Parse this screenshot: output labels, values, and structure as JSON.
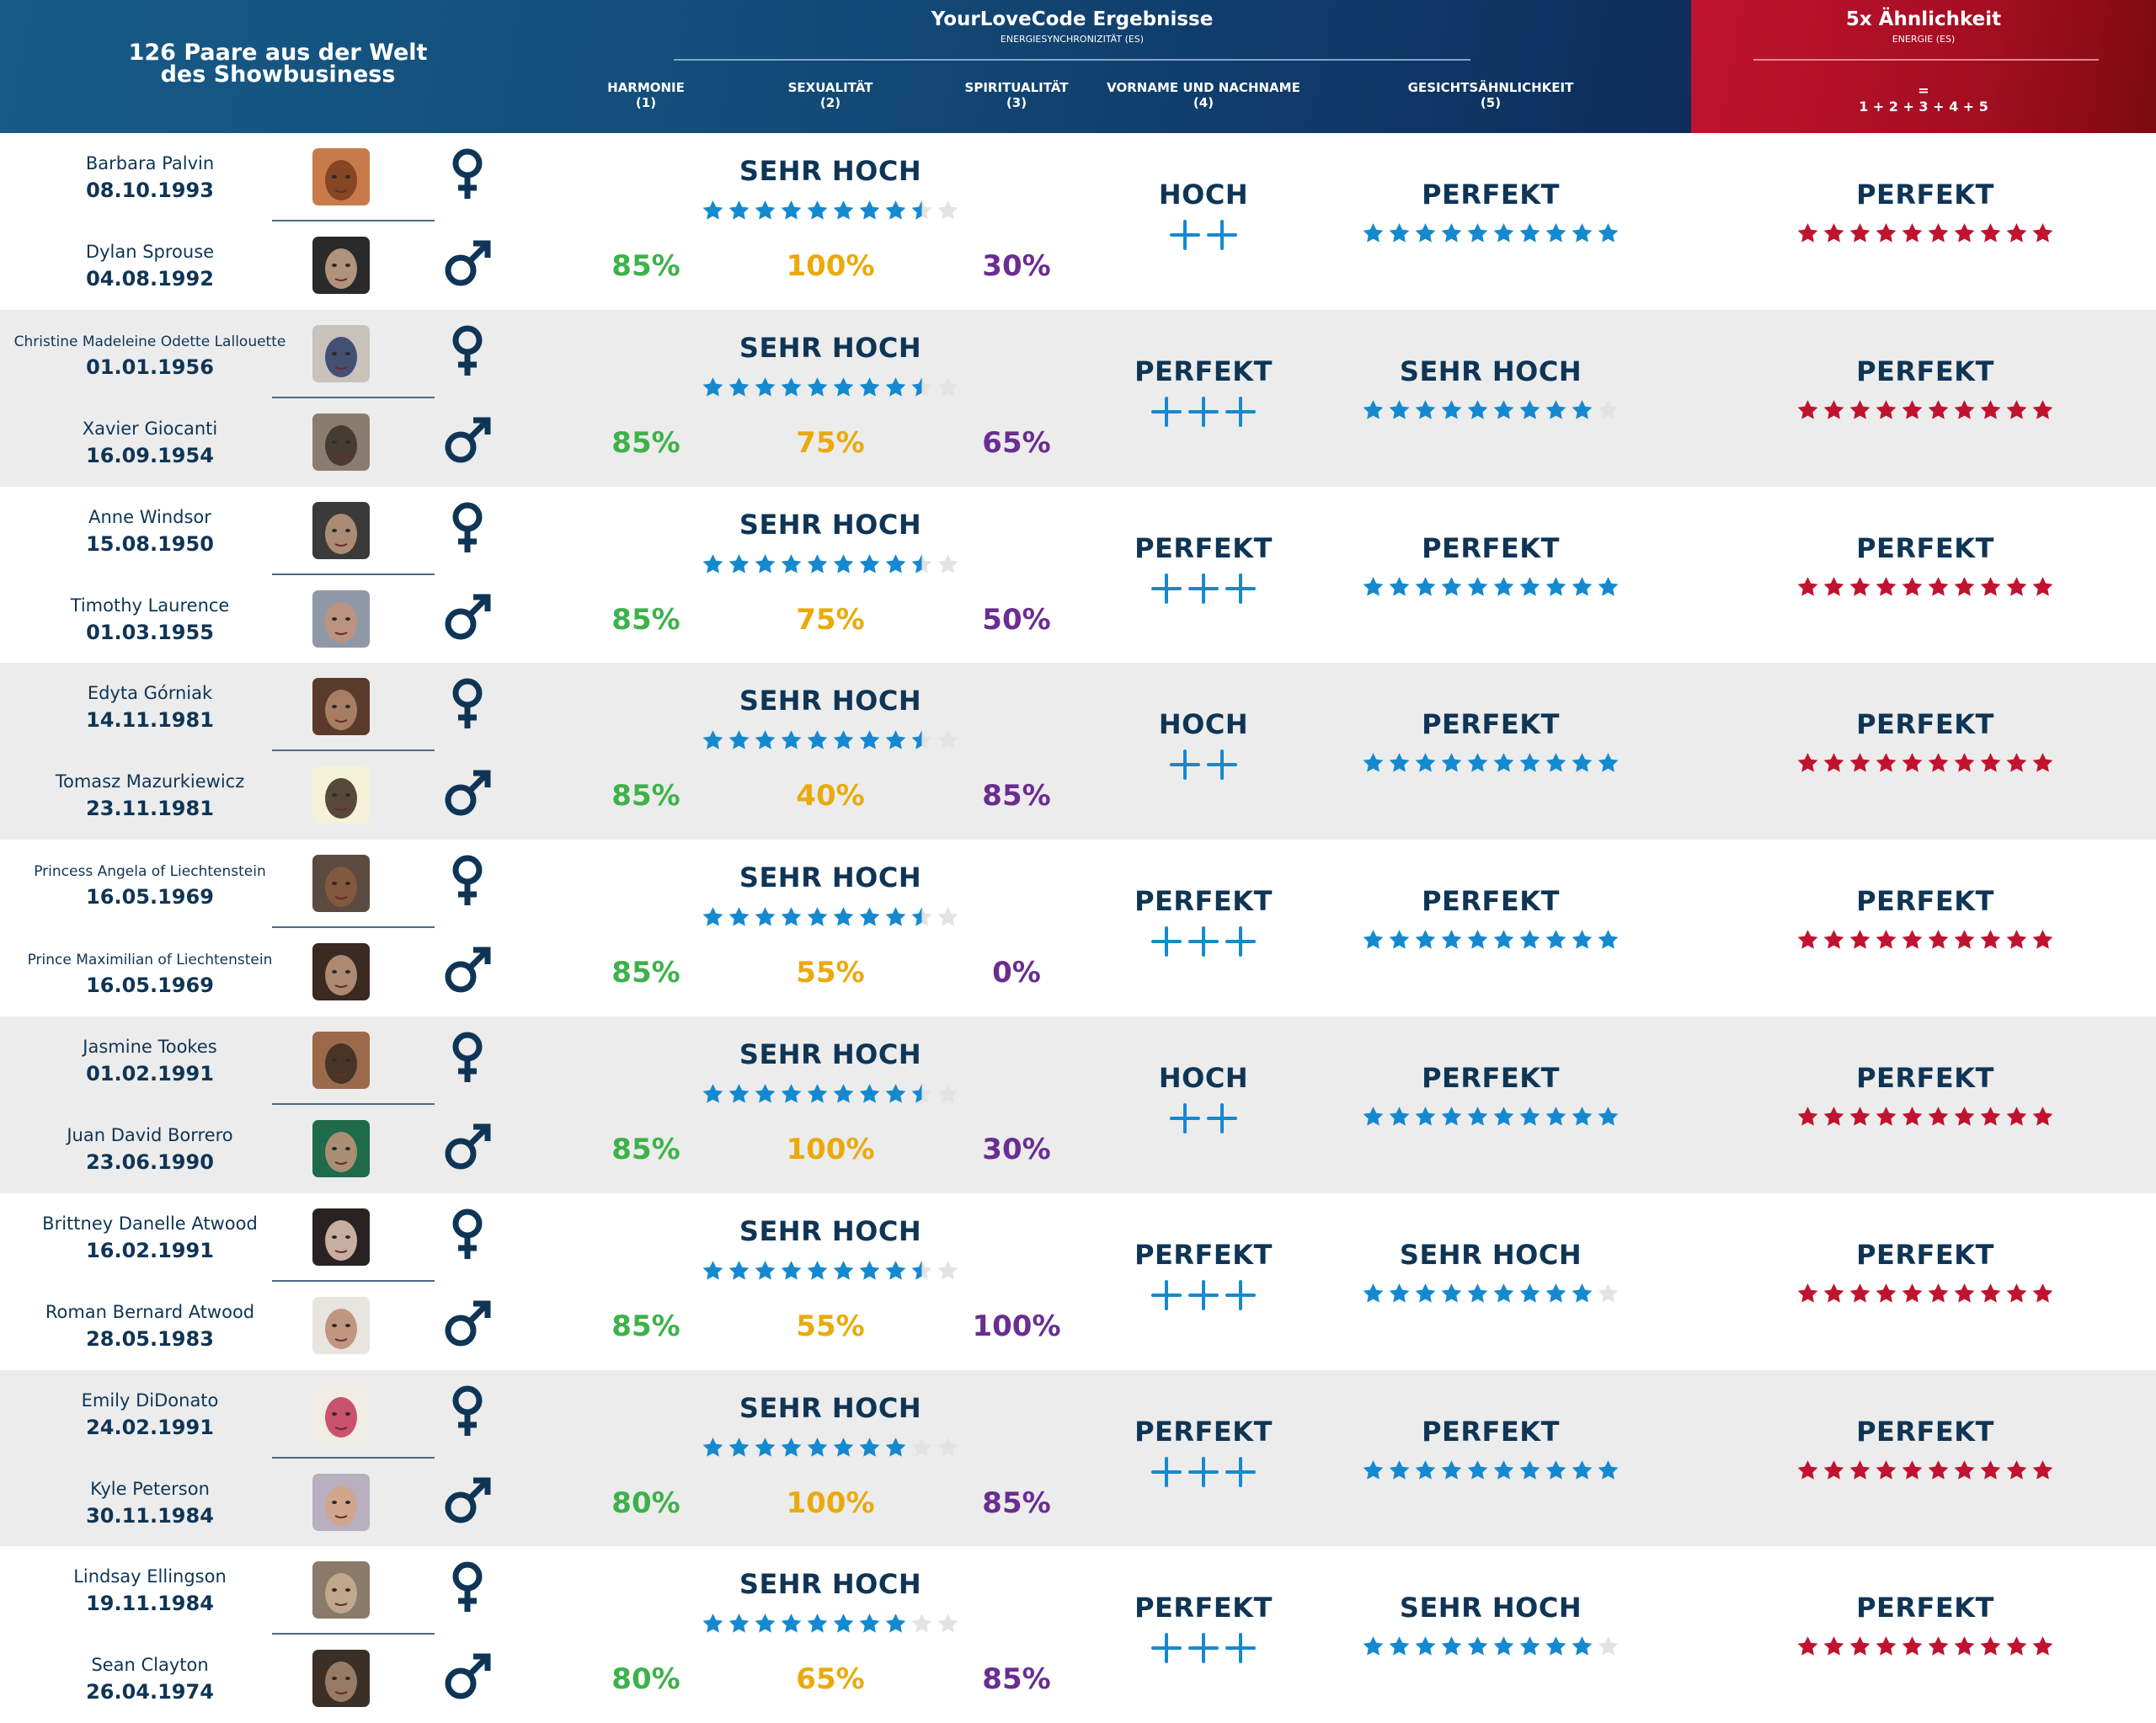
{
  "header": {
    "left_title_line1": "126 Paare aus der Welt",
    "left_title_line2": "des Showbusiness",
    "main_title": "YourLoveCode Ergebnisse",
    "main_subtitle": "ENERGIESYNCHRONIZITÄT (ES)",
    "columns": [
      {
        "label": "HARMONIE",
        "num": "(1)"
      },
      {
        "label": "SEXUALITÄT",
        "num": "(2)"
      },
      {
        "label": "SPIRITUALITÄT",
        "num": "(3)"
      },
      {
        "label": "VORNAME UND NACHNAME",
        "num": "(4)"
      },
      {
        "label": "GESICHTSÄHNLICHKEIT",
        "num": "(5)"
      }
    ],
    "total_title": "5x Ähnlichkeit",
    "total_subtitle": "ENERGIE (ES)",
    "total_formula_eq": "=",
    "total_formula": "1 + 2 + 3 + 4 + 5"
  },
  "colors": {
    "header_blue": "#134c78",
    "header_red": "#b3112a",
    "text_dark": "#0f3556",
    "star_blue": "#1589d0",
    "star_red": "#c0132f",
    "star_empty": "#e3e3e3",
    "harmony": "#3eb24a",
    "sexuality": "#eaaa0d",
    "spirituality": "#6a2d91"
  },
  "pairs": [
    {
      "woman": {
        "name": "Barbara Palvin",
        "dob": "08.10.1993",
        "gender": "female-icon"
      },
      "man": {
        "name": "Dylan Sprouse",
        "dob": "04.08.1992",
        "gender": "male-icon"
      },
      "es_level": "SEHR HOCH",
      "es_stars": 8.5,
      "harmony": "85%",
      "sexuality": "100%",
      "spirituality": "30%",
      "name_level": "HOCH",
      "name_plus": 2,
      "face_level": "PERFEKT",
      "face_stars": 10,
      "total_level": "PERFEKT",
      "total_stars": 10
    },
    {
      "woman": {
        "name": "Christine Madeleine Odette Lallouette",
        "dob": "01.01.1956",
        "gender": "female-icon"
      },
      "man": {
        "name": "Xavier Giocanti",
        "dob": "16.09.1954",
        "gender": "male-icon"
      },
      "es_level": "SEHR HOCH",
      "es_stars": 8.5,
      "harmony": "85%",
      "sexuality": "75%",
      "spirituality": "65%",
      "name_level": "PERFEKT",
      "name_plus": 3,
      "face_level": "SEHR HOCH",
      "face_stars": 9,
      "total_level": "PERFEKT",
      "total_stars": 10
    },
    {
      "woman": {
        "name": "Anne Windsor",
        "dob": "15.08.1950",
        "gender": "female-icon"
      },
      "man": {
        "name": "Timothy Laurence",
        "dob": "01.03.1955",
        "gender": "male-icon"
      },
      "es_level": "SEHR HOCH",
      "es_stars": 8.5,
      "harmony": "85%",
      "sexuality": "75%",
      "spirituality": "50%",
      "name_level": "PERFEKT",
      "name_plus": 3,
      "face_level": "PERFEKT",
      "face_stars": 10,
      "total_level": "PERFEKT",
      "total_stars": 10
    },
    {
      "woman": {
        "name": "Edyta Górniak",
        "dob": "14.11.1981",
        "gender": "female-icon"
      },
      "man": {
        "name": "Tomasz Mazurkiewicz",
        "dob": "23.11.1981",
        "gender": "male-icon"
      },
      "es_level": "SEHR HOCH",
      "es_stars": 8.5,
      "harmony": "85%",
      "sexuality": "40%",
      "spirituality": "85%",
      "name_level": "HOCH",
      "name_plus": 2,
      "face_level": "PERFEKT",
      "face_stars": 10,
      "total_level": "PERFEKT",
      "total_stars": 10
    },
    {
      "woman": {
        "name": "Princess Angela of Liechtenstein",
        "dob": "16.05.1969",
        "gender": "female-icon"
      },
      "man": {
        "name": "Prince Maximilian of Liechtenstein",
        "dob": "16.05.1969",
        "gender": "male-icon"
      },
      "es_level": "SEHR HOCH",
      "es_stars": 8.5,
      "harmony": "85%",
      "sexuality": "55%",
      "spirituality": "0%",
      "name_level": "PERFEKT",
      "name_plus": 3,
      "face_level": "PERFEKT",
      "face_stars": 10,
      "total_level": "PERFEKT",
      "total_stars": 10
    },
    {
      "woman": {
        "name": "Jasmine Tookes",
        "dob": "01.02.1991",
        "gender": "female-icon"
      },
      "man": {
        "name": "Juan David Borrero",
        "dob": "23.06.1990",
        "gender": "male-icon"
      },
      "es_level": "SEHR HOCH",
      "es_stars": 8.5,
      "harmony": "85%",
      "sexuality": "100%",
      "spirituality": "30%",
      "name_level": "HOCH",
      "name_plus": 2,
      "face_level": "PERFEKT",
      "face_stars": 10,
      "total_level": "PERFEKT",
      "total_stars": 10
    },
    {
      "woman": {
        "name": "Brittney Danelle Atwood",
        "dob": "16.02.1991",
        "gender": "female-icon"
      },
      "man": {
        "name": "Roman Bernard Atwood",
        "dob": "28.05.1983",
        "gender": "male-icon"
      },
      "es_level": "SEHR HOCH",
      "es_stars": 8.5,
      "harmony": "85%",
      "sexuality": "55%",
      "spirituality": "100%",
      "name_level": "PERFEKT",
      "name_plus": 3,
      "face_level": "SEHR HOCH",
      "face_stars": 9,
      "total_level": "PERFEKT",
      "total_stars": 10
    },
    {
      "woman": {
        "name": "Emily DiDonato",
        "dob": "24.02.1991",
        "gender": "female-icon"
      },
      "man": {
        "name": "Kyle Peterson",
        "dob": "30.11.1984",
        "gender": "male-icon"
      },
      "es_level": "SEHR HOCH",
      "es_stars": 8,
      "harmony": "80%",
      "sexuality": "100%",
      "spirituality": "85%",
      "name_level": "PERFEKT",
      "name_plus": 3,
      "face_level": "PERFEKT",
      "face_stars": 10,
      "total_level": "PERFEKT",
      "total_stars": 10
    },
    {
      "woman": {
        "name": "Lindsay Ellingson",
        "dob": "19.11.1984",
        "gender": "female-icon"
      },
      "man": {
        "name": "Sean Clayton",
        "dob": "26.04.1974",
        "gender": "male-icon"
      },
      "es_level": "SEHR HOCH",
      "es_stars": 8,
      "harmony": "80%",
      "sexuality": "65%",
      "spirituality": "85%",
      "name_level": "PERFEKT",
      "name_plus": 3,
      "face_level": "SEHR HOCH",
      "face_stars": 9,
      "total_level": "PERFEKT",
      "total_stars": 10
    }
  ]
}
